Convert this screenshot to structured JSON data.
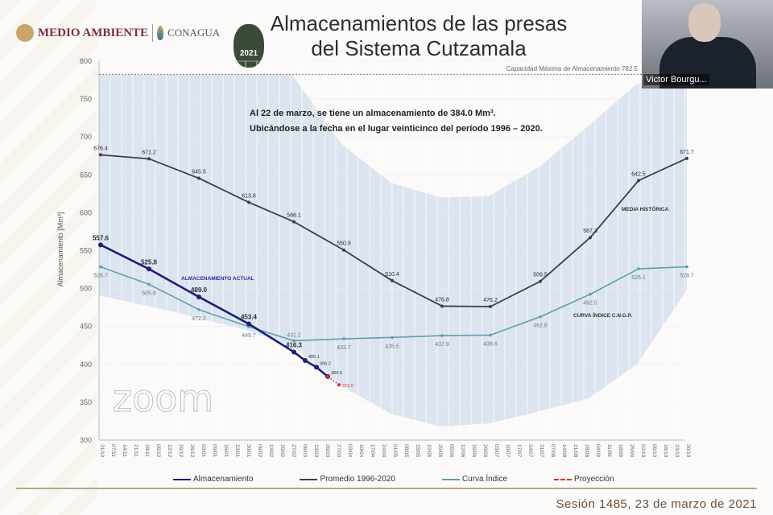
{
  "header": {
    "logo_medio_ambiente": "MEDIO AMBIENTE",
    "logo_conagua": "CONAGUA",
    "logo_badge": "2021",
    "title_line1": "Almacenamientos de las presas",
    "title_line2": "del Sistema Cutzamala"
  },
  "webcam": {
    "participant_name": "Victor Bourgu..."
  },
  "footer": {
    "session": "Sesión 1485, 23 de marzo de 2021",
    "watermark": "zoom"
  },
  "colors": {
    "almacenamiento": "#1a1f7a",
    "promedio": "#3a3f4a",
    "curva_indice": "#5f9fb0",
    "proyeccion": "#d9302c",
    "band": "#dce5ef"
  },
  "chart_data": {
    "type": "line",
    "ylabel": "Almacenamiento [Mm³]",
    "ylim": [
      300,
      800
    ],
    "yticks": [
      300,
      350,
      400,
      450,
      500,
      550,
      600,
      650,
      700,
      750,
      800
    ],
    "grid": true,
    "legend_position": "bottom",
    "xtick_labels": [
      "31/10",
      "07/11",
      "14/11",
      "21/11",
      "28/11",
      "05/12",
      "12/12",
      "19/12",
      "26/12",
      "02/01",
      "09/01",
      "16/01",
      "23/01",
      "30/01",
      "06/02",
      "13/02",
      "20/02",
      "27/02",
      "06/03",
      "13/03",
      "20/03",
      "27/03",
      "03/04",
      "10/04",
      "17/04",
      "24/04",
      "01/05",
      "08/05",
      "15/05",
      "22/05",
      "29/05",
      "05/06",
      "12/06",
      "19/06",
      "26/06",
      "03/07",
      "10/07",
      "17/07",
      "24/07",
      "31/07",
      "07/08",
      "14/08",
      "21/08",
      "28/08",
      "04/09",
      "11/09",
      "18/09",
      "25/09",
      "02/10",
      "09/10",
      "16/10",
      "23/10",
      "30/10"
    ],
    "capacity_line": {
      "label": "Capacidad Máxima de Almacenamiento 782.5",
      "value": 782.5
    },
    "annotation": {
      "line1": "Al 22 de marzo, se tiene un almacenamiento de 384.0 Mm³.",
      "line2": "Ubicándose a la fecha en el lugar veinticinco del período 1996 – 2020."
    },
    "inline_labels": {
      "almacenamiento": "ALMACENAMIENTO ACTUAL",
      "promedio": "MEDIA HISTÓRICA",
      "curva_indice": "CURVA ÍNDICE C.N.G.P."
    },
    "band": {
      "x": [
        "2020-10-31",
        "2020-12-15",
        "2021-01-31",
        "2021-02-28",
        "2021-03-31",
        "2021-04-30",
        "2021-05-31",
        "2021-06-30",
        "2021-07-31",
        "2021-08-31",
        "2021-09-30",
        "2021-10-31"
      ],
      "upper": [
        782,
        782,
        782,
        782,
        690,
        640,
        620,
        622,
        660,
        715,
        770,
        782
      ],
      "lower": [
        491,
        470,
        445,
        424,
        371,
        335,
        318,
        322,
        338,
        355,
        400,
        498
      ]
    },
    "series": [
      {
        "name": "Almacenamiento",
        "key": "almacenamiento",
        "x": [
          "2020-11-01",
          "2020-12-01",
          "2021-01-01",
          "2021-02-01",
          "2021-03-01",
          "2021-03-08",
          "2021-03-15",
          "2021-03-22"
        ],
        "values": [
          557.6,
          525.8,
          489.0,
          453.4,
          416.3,
          405.1,
          396.2,
          384.0
        ]
      },
      {
        "name": "Promedio 1996-2020",
        "key": "promedio",
        "x": [
          "2020-11-01",
          "2020-12-01",
          "2021-01-01",
          "2021-02-01",
          "2021-03-01",
          "2021-04-01",
          "2021-05-01",
          "2021-06-01",
          "2021-07-01",
          "2021-08-01",
          "2021-09-01",
          "2021-10-01",
          "2021-10-31"
        ],
        "values": [
          676.4,
          671.2,
          645.5,
          613.8,
          588.1,
          550.8,
          510.4,
          476.8,
          476.2,
          509.5,
          567.3,
          642.5,
          671.7
        ]
      },
      {
        "name": "Curva Índice",
        "key": "curva_indice",
        "x": [
          "2020-11-01",
          "2020-12-01",
          "2021-01-01",
          "2021-02-01",
          "2021-03-01",
          "2021-04-01",
          "2021-05-01",
          "2021-06-01",
          "2021-07-01",
          "2021-08-01",
          "2021-09-01",
          "2021-10-01",
          "2021-10-31"
        ],
        "values": [
          528.7,
          505.6,
          472.2,
          449.7,
          431.2,
          433.7,
          435.5,
          437.9,
          438.6,
          462.8,
          492.5,
          526.1,
          528.7
        ]
      },
      {
        "name": "Proyección",
        "key": "proyeccion",
        "x": [
          "2021-03-22",
          "2021-03-29"
        ],
        "values": [
          384.0,
          373.0
        ],
        "point_labels": [
          "",
          "373.0"
        ]
      }
    ]
  }
}
